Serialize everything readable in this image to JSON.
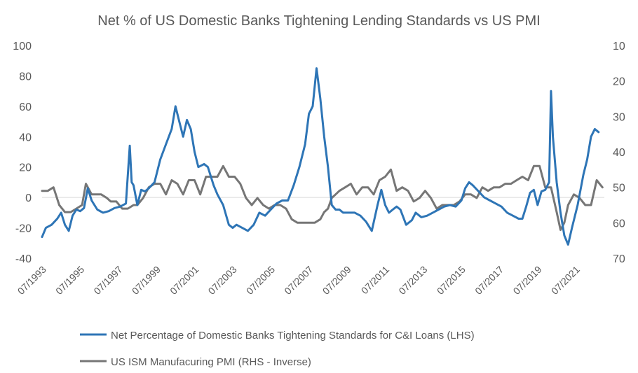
{
  "chart_data": {
    "type": "line",
    "title": "Net % of US Domestic Banks Tightening Lending Standards vs US PMI",
    "left_axis": {
      "ylim": [
        -40,
        100
      ],
      "ticks": [
        "-40",
        "-20",
        "0",
        "20",
        "40",
        "60",
        "80",
        "100"
      ]
    },
    "right_axis": {
      "inverted": true,
      "ylim": [
        10,
        70
      ],
      "ticks": [
        "10",
        "20",
        "30",
        "40",
        "50",
        "60",
        "70"
      ]
    },
    "x_ticks": [
      "07/1993",
      "07/1995",
      "07/1997",
      "07/1999",
      "07/2001",
      "07/2003",
      "07/2005",
      "07/2007",
      "07/2009",
      "07/2011",
      "07/2013",
      "07/2015",
      "07/2017",
      "07/2019",
      "07/2021"
    ],
    "x_tick_years": [
      1993.5,
      1995.5,
      1997.5,
      1999.5,
      2001.5,
      2003.5,
      2005.5,
      2007.5,
      2009.5,
      2011.5,
      2013.5,
      2015.5,
      2017.5,
      2019.5,
      2021.5
    ],
    "x_range": [
      1993.4,
      2022.9
    ],
    "legend_position": "bottom",
    "grid": false,
    "series": [
      {
        "name": "Net Percentage of Domestic Banks Tightening Standards for C&I Loans (LHS)",
        "axis": "left",
        "color": "#2e75b6",
        "x": [
          1993.4,
          1993.6,
          1993.9,
          1994.2,
          1994.4,
          1994.6,
          1994.8,
          1995.0,
          1995.2,
          1995.4,
          1995.6,
          1995.8,
          1996.0,
          1996.3,
          1996.6,
          1996.9,
          1997.2,
          1997.5,
          1997.8,
          1998.0,
          1998.1,
          1998.2,
          1998.4,
          1998.6,
          1998.8,
          1999.0,
          1999.3,
          1999.6,
          1999.9,
          2000.2,
          2000.4,
          2000.6,
          2000.8,
          2001.0,
          2001.2,
          2001.4,
          2001.6,
          2001.9,
          2002.1,
          2002.4,
          2002.6,
          2002.9,
          2003.2,
          2003.4,
          2003.6,
          2003.9,
          2004.2,
          2004.5,
          2004.8,
          2005.1,
          2005.4,
          2005.7,
          2006.0,
          2006.3,
          2006.6,
          2006.9,
          2007.2,
          2007.4,
          2007.6,
          2007.8,
          2008.0,
          2008.2,
          2008.4,
          2008.6,
          2008.8,
          2009.0,
          2009.2,
          2009.5,
          2009.8,
          2010.1,
          2010.4,
          2010.7,
          2011.0,
          2011.2,
          2011.4,
          2011.6,
          2011.8,
          2012.0,
          2012.2,
          2012.5,
          2012.8,
          2013.0,
          2013.3,
          2013.6,
          2013.9,
          2014.2,
          2014.5,
          2014.8,
          2015.1,
          2015.4,
          2015.6,
          2015.8,
          2016.0,
          2016.3,
          2016.6,
          2016.9,
          2017.2,
          2017.5,
          2017.8,
          2018.1,
          2018.4,
          2018.6,
          2018.8,
          2019.0,
          2019.2,
          2019.4,
          2019.6,
          2019.8,
          2020.0,
          2020.1,
          2020.2,
          2020.4,
          2020.6,
          2020.8,
          2021.0,
          2021.2,
          2021.5,
          2021.8,
          2022.0,
          2022.2,
          2022.4,
          2022.6
        ],
        "y": [
          -26,
          -20,
          -18,
          -14,
          -10,
          -18,
          -22,
          -12,
          -8,
          -9,
          -7,
          6,
          -2,
          -8,
          -10,
          -9,
          -7,
          -6,
          -4,
          34,
          10,
          8,
          -5,
          5,
          4,
          6,
          10,
          25,
          35,
          45,
          60,
          50,
          40,
          51,
          45,
          30,
          20,
          22,
          20,
          8,
          2,
          -5,
          -18,
          -20,
          -18,
          -20,
          -22,
          -18,
          -10,
          -12,
          -8,
          -4,
          -2,
          -2,
          8,
          20,
          35,
          55,
          60,
          85,
          65,
          40,
          20,
          -5,
          -8,
          -8,
          -10,
          -10,
          -10,
          -12,
          -16,
          -22,
          -5,
          5,
          -5,
          -10,
          -8,
          -6,
          -8,
          -18,
          -15,
          -10,
          -13,
          -12,
          -10,
          -8,
          -6,
          -5,
          -6,
          -2,
          6,
          10,
          8,
          4,
          0,
          -2,
          -4,
          -6,
          -10,
          -12,
          -14,
          -14,
          -6,
          3,
          5,
          -5,
          4,
          5,
          10,
          70,
          40,
          10,
          -10,
          -25,
          -31,
          -20,
          -5,
          15,
          25,
          40,
          45,
          43
        ]
      },
      {
        "name": "US ISM Manufacuring PMI (RHS - Inverse)",
        "axis": "right",
        "color": "#767676",
        "x": [
          1993.4,
          1993.7,
          1994.0,
          1994.3,
          1994.6,
          1994.9,
          1995.2,
          1995.5,
          1995.7,
          1996.0,
          1996.3,
          1996.5,
          1996.8,
          1997.0,
          1997.3,
          1997.6,
          1997.9,
          1998.2,
          1998.4,
          1998.7,
          1999.0,
          1999.3,
          1999.6,
          1999.9,
          2000.2,
          2000.5,
          2000.8,
          2001.1,
          2001.4,
          2001.7,
          2002.0,
          2002.3,
          2002.6,
          2002.9,
          2003.2,
          2003.5,
          2003.8,
          2004.1,
          2004.4,
          2004.7,
          2005.0,
          2005.3,
          2005.6,
          2005.9,
          2006.2,
          2006.5,
          2006.8,
          2007.1,
          2007.4,
          2007.7,
          2008.0,
          2008.2,
          2008.4,
          2008.6,
          2008.8,
          2009.0,
          2009.3,
          2009.6,
          2009.9,
          2010.2,
          2010.5,
          2010.8,
          2011.1,
          2011.4,
          2011.7,
          2012.0,
          2012.3,
          2012.6,
          2012.9,
          2013.2,
          2013.5,
          2013.8,
          2014.1,
          2014.4,
          2014.7,
          2015.0,
          2015.3,
          2015.6,
          2015.9,
          2016.2,
          2016.5,
          2016.8,
          2017.1,
          2017.4,
          2017.7,
          2018.0,
          2018.3,
          2018.6,
          2018.9,
          2019.2,
          2019.5,
          2019.8,
          2020.1,
          2020.4,
          2020.6,
          2020.8,
          2021.0,
          2021.3,
          2021.6,
          2021.9,
          2022.2,
          2022.5,
          2022.8
        ],
        "y": [
          51,
          51,
          50,
          55,
          57,
          57,
          56,
          55,
          49,
          52,
          52,
          52,
          53,
          54,
          54,
          56,
          56,
          55,
          55,
          53,
          50,
          49,
          49,
          52,
          48,
          49,
          52,
          48,
          48,
          52,
          47,
          47,
          47,
          44,
          47,
          47,
          49,
          53,
          55,
          53,
          55,
          56,
          55,
          55,
          56,
          59,
          60,
          60,
          60,
          60,
          59,
          57,
          56,
          53,
          52,
          51,
          50,
          49,
          52,
          50,
          50,
          52,
          48,
          47,
          45,
          51,
          50,
          51,
          54,
          53,
          51,
          53,
          56,
          55,
          55,
          55,
          54,
          52,
          52,
          53,
          50,
          51,
          50,
          50,
          49,
          49,
          48,
          47,
          48,
          44,
          44,
          50,
          50,
          57,
          62,
          60,
          55,
          52,
          53,
          55,
          55,
          48,
          50
        ]
      }
    ]
  }
}
